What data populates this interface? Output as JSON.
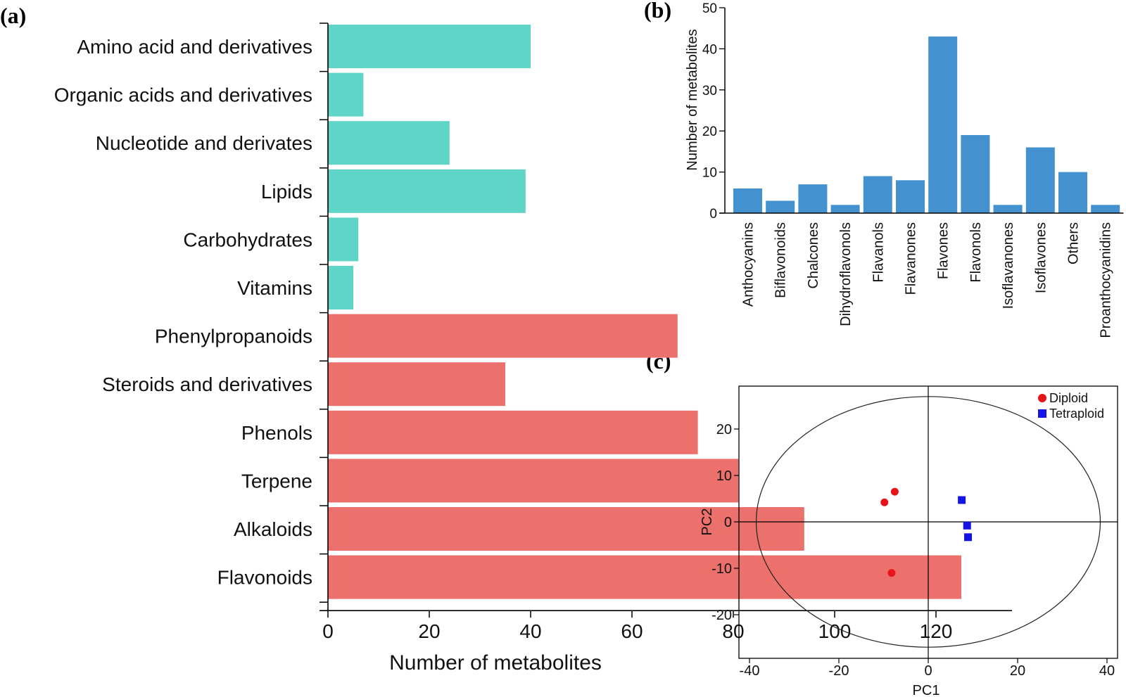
{
  "chart_data": [
    {
      "panel": "(a)",
      "type": "bar",
      "orientation": "horizontal",
      "categories": [
        "Amino acid and derivatives",
        "Organic acids and derivatives",
        "Nucleotide and derivates",
        "Lipids",
        "Carbohydrates",
        "Vitamins",
        "Phenylpropanoids",
        "Steroids and derivatives",
        "Phenols",
        "Terpene",
        "Alkaloids",
        "Flavonoids"
      ],
      "values": [
        40,
        7,
        24,
        39,
        6,
        5,
        69,
        35,
        73,
        81,
        94,
        125
      ],
      "group_colors": [
        "#5fd5c8",
        "#5fd5c8",
        "#5fd5c8",
        "#5fd5c8",
        "#5fd5c8",
        "#5fd5c8",
        "#ec706c",
        "#ec706c",
        "#ec706c",
        "#ec706c",
        "#ec706c",
        "#ec706c"
      ],
      "xticks": [
        "0",
        "20",
        "40",
        "60",
        "80",
        "100",
        "120"
      ],
      "xlim": [
        0,
        135
      ],
      "xlabel": "Number of metabolites",
      "ylabel": "",
      "grid": false
    },
    {
      "panel": "(b)",
      "type": "bar",
      "categories": [
        "Anthocyanins",
        "Biflavonoids",
        "Chalcones",
        "Dihydroflavonols",
        "Flavanols",
        "Flavanones",
        "Flavones",
        "Flavonols",
        "Isoflavanones",
        "Isoflavones",
        "Others",
        "Proanthocyanidins"
      ],
      "values": [
        6,
        3,
        7,
        2,
        9,
        8,
        43,
        19,
        2,
        16,
        10,
        2
      ],
      "color": "#4392cf",
      "yticks": [
        "0",
        "10",
        "20",
        "30",
        "40",
        "50"
      ],
      "ylim": [
        0,
        50
      ],
      "ylabel": "Number of metabolites",
      "xlabel": "",
      "grid": false
    },
    {
      "panel": "(c)",
      "type": "scatter",
      "xlabel": "PC1",
      "ylabel": "PC2",
      "xticks": [
        "-40",
        "-20",
        "0",
        "20",
        "40"
      ],
      "yticks": [
        "20",
        "10",
        "0",
        "-10",
        "-20"
      ],
      "xlim": [
        -42,
        42
      ],
      "ylim": [
        -29,
        29
      ],
      "ellipse": {
        "rx": 38.5,
        "ry": 27
      },
      "legend_position": "top-right",
      "series": [
        {
          "name": "Diploid",
          "color": "#e8141a",
          "marker": "circle",
          "points": [
            [
              -7.5,
              6.5
            ],
            [
              -9.8,
              4.2
            ],
            [
              -8.2,
              -11
            ]
          ]
        },
        {
          "name": "Tetraploid",
          "color": "#1414e6",
          "marker": "square",
          "points": [
            [
              7.5,
              4.7
            ],
            [
              8.7,
              -0.8
            ],
            [
              8.9,
              -3.3
            ]
          ]
        }
      ]
    }
  ]
}
